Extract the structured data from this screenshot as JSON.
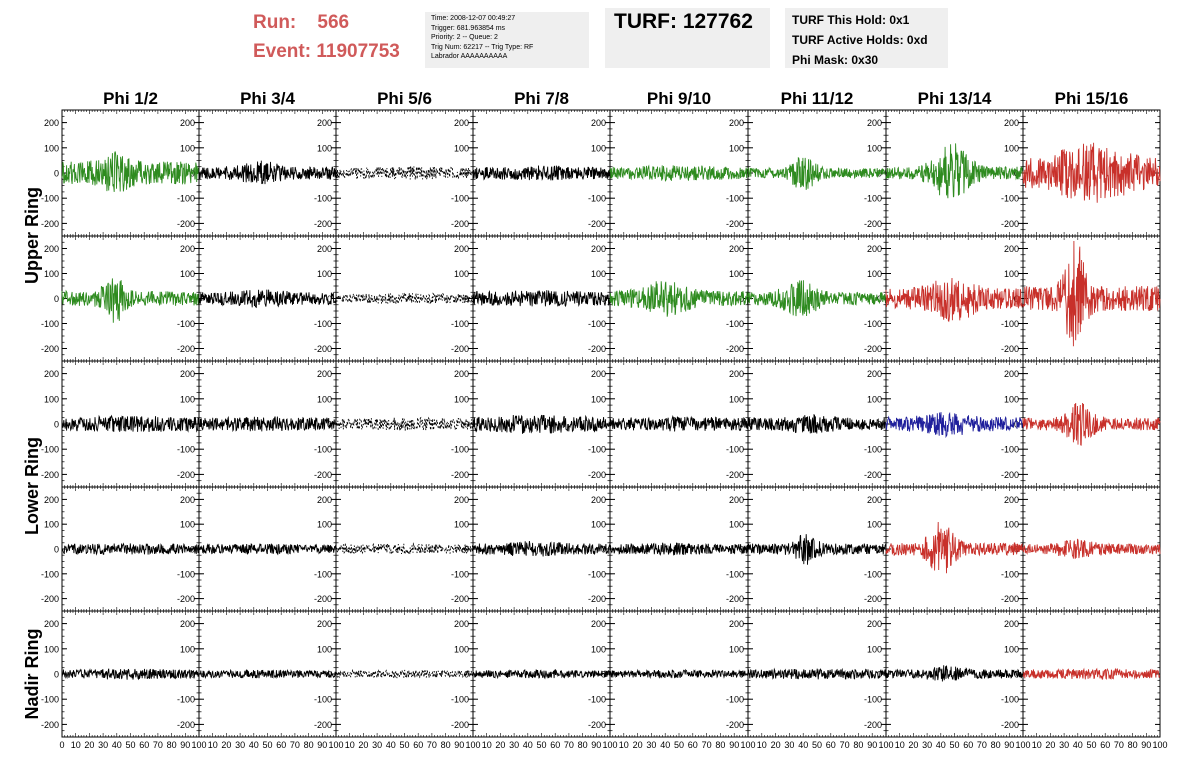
{
  "run_info": {
    "run_label": "Run:",
    "run_value": "566",
    "event_label": "Event:",
    "event_value": "11907753"
  },
  "trigger_info": {
    "time": "Time: 2008-12-07 00:49:27",
    "trigger": "Trigger: 681.963854 ms",
    "priority": "Priority: 2 -- Queue: 2",
    "trig_num": "Trig Num: 62217 -- Trig Type: RF",
    "labrador": "Labrador AAAAAAAAAA"
  },
  "turf": {
    "label": "TURF: 127762"
  },
  "holds": {
    "this_hold": "TURF This Hold: 0x1",
    "active_holds": "TURF Active Holds: 0xd",
    "phi_mask": "Phi Mask: 0x30"
  },
  "colors": {
    "green": "#2e8b1f",
    "red": "#c8302a",
    "blue": "#1f1f9c",
    "black": "#000000",
    "header_red": "#d05a5a"
  },
  "chart_data": {
    "type": "line",
    "columns": [
      "Phi 1/2",
      "Phi 3/4",
      "Phi 5/6",
      "Phi 7/8",
      "Phi 9/10",
      "Phi 11/12",
      "Phi 13/14",
      "Phi 15/16"
    ],
    "rows": [
      "Upper Ring",
      "Lower Ring",
      "Nadir Ring"
    ],
    "ylim": [
      -250,
      250
    ],
    "y_ticks": [
      -200,
      -100,
      0,
      100,
      200
    ],
    "y_tick_labels": [
      "-200",
      "-100",
      "0",
      "100",
      "200"
    ],
    "xlim": [
      0,
      100
    ],
    "x_tick_labels": [
      "0",
      "10",
      "20",
      "30",
      "40",
      "50",
      "60",
      "70",
      "80",
      "90",
      "100"
    ],
    "panels": [
      [
        {
          "color": "green",
          "amp": 45,
          "peak": 2.0,
          "center": 38,
          "width": 12,
          "style": "solid"
        },
        {
          "color": "black",
          "amp": 25,
          "peak": 2.0,
          "center": 45,
          "width": 15,
          "style": "solid"
        },
        {
          "color": "black",
          "amp": 22,
          "peak": 1.2,
          "center": 50,
          "width": 25,
          "style": "dotted"
        },
        {
          "color": "black",
          "amp": 25,
          "peak": 1.2,
          "center": 50,
          "width": 25,
          "style": "solid"
        },
        {
          "color": "green",
          "amp": 25,
          "peak": 1.3,
          "center": 50,
          "width": 25,
          "style": "solid"
        },
        {
          "color": "green",
          "amp": 20,
          "peak": 3.5,
          "center": 40,
          "width": 10,
          "style": "solid"
        },
        {
          "color": "green",
          "amp": 25,
          "peak": 5.0,
          "center": 48,
          "width": 14,
          "style": "solid"
        },
        {
          "color": "red",
          "amp": 55,
          "peak": 2.2,
          "center": 50,
          "width": 30,
          "style": "solid"
        }
      ],
      [
        {
          "color": "green",
          "amp": 30,
          "peak": 3.5,
          "center": 38,
          "width": 8,
          "style": "solid"
        },
        {
          "color": "black",
          "amp": 25,
          "peak": 1.5,
          "center": 45,
          "width": 20,
          "style": "solid"
        },
        {
          "color": "black",
          "amp": 18,
          "peak": 1.2,
          "center": 50,
          "width": 25,
          "style": "dotted"
        },
        {
          "color": "black",
          "amp": 28,
          "peak": 1.2,
          "center": 50,
          "width": 25,
          "style": "solid"
        },
        {
          "color": "green",
          "amp": 30,
          "peak": 2.5,
          "center": 40,
          "width": 18,
          "style": "solid"
        },
        {
          "color": "green",
          "amp": 25,
          "peak": 3.0,
          "center": 38,
          "width": 14,
          "style": "solid"
        },
        {
          "color": "red",
          "amp": 40,
          "peak": 2.5,
          "center": 48,
          "width": 18,
          "style": "solid"
        },
        {
          "color": "red",
          "amp": 50,
          "peak": 5.0,
          "center": 38,
          "width": 8,
          "style": "solid"
        }
      ],
      [
        {
          "color": "black",
          "amp": 28,
          "peak": 1.2,
          "center": 50,
          "width": 25,
          "style": "solid"
        },
        {
          "color": "black",
          "amp": 25,
          "peak": 1.2,
          "center": 50,
          "width": 25,
          "style": "solid"
        },
        {
          "color": "black",
          "amp": 22,
          "peak": 1.2,
          "center": 50,
          "width": 25,
          "style": "dotted"
        },
        {
          "color": "black",
          "amp": 30,
          "peak": 1.4,
          "center": 45,
          "width": 20,
          "style": "solid"
        },
        {
          "color": "black",
          "amp": 25,
          "peak": 1.2,
          "center": 50,
          "width": 25,
          "style": "solid"
        },
        {
          "color": "black",
          "amp": 25,
          "peak": 1.6,
          "center": 45,
          "width": 15,
          "style": "solid"
        },
        {
          "color": "blue",
          "amp": 28,
          "peak": 1.8,
          "center": 45,
          "width": 18,
          "style": "solid"
        },
        {
          "color": "red",
          "amp": 25,
          "peak": 4.0,
          "center": 42,
          "width": 10,
          "style": "solid"
        }
      ],
      [
        {
          "color": "black",
          "amp": 20,
          "peak": 1.2,
          "center": 50,
          "width": 25,
          "style": "solid"
        },
        {
          "color": "black",
          "amp": 18,
          "peak": 1.2,
          "center": 50,
          "width": 25,
          "style": "solid"
        },
        {
          "color": "black",
          "amp": 18,
          "peak": 1.2,
          "center": 50,
          "width": 25,
          "style": "dotted"
        },
        {
          "color": "black",
          "amp": 22,
          "peak": 1.5,
          "center": 45,
          "width": 20,
          "style": "solid"
        },
        {
          "color": "black",
          "amp": 20,
          "peak": 1.3,
          "center": 45,
          "width": 20,
          "style": "solid"
        },
        {
          "color": "black",
          "amp": 22,
          "peak": 3.0,
          "center": 42,
          "width": 8,
          "style": "solid"
        },
        {
          "color": "red",
          "amp": 25,
          "peak": 4.5,
          "center": 40,
          "width": 10,
          "style": "solid"
        },
        {
          "color": "red",
          "amp": 20,
          "peak": 2.0,
          "center": 40,
          "width": 15,
          "style": "solid"
        }
      ],
      [
        {
          "color": "black",
          "amp": 18,
          "peak": 1.3,
          "center": 45,
          "width": 20,
          "style": "solid"
        },
        {
          "color": "black",
          "amp": 14,
          "peak": 1.2,
          "center": 50,
          "width": 25,
          "style": "solid"
        },
        {
          "color": "black",
          "amp": 14,
          "peak": 1.2,
          "center": 50,
          "width": 25,
          "style": "dotted"
        },
        {
          "color": "black",
          "amp": 14,
          "peak": 1.2,
          "center": 50,
          "width": 25,
          "style": "solid"
        },
        {
          "color": "black",
          "amp": 14,
          "peak": 1.2,
          "center": 50,
          "width": 25,
          "style": "solid"
        },
        {
          "color": "black",
          "amp": 18,
          "peak": 1.2,
          "center": 50,
          "width": 25,
          "style": "solid"
        },
        {
          "color": "black",
          "amp": 18,
          "peak": 2.0,
          "center": 45,
          "width": 12,
          "style": "solid"
        },
        {
          "color": "red",
          "amp": 18,
          "peak": 1.2,
          "center": 50,
          "width": 25,
          "style": "solid"
        }
      ]
    ]
  }
}
